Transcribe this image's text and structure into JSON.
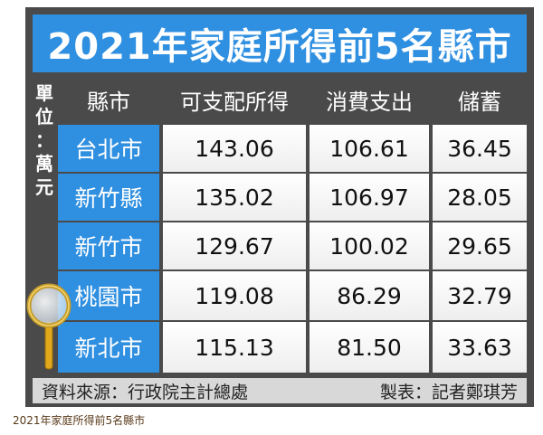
{
  "title": "2021年家庭所得前5名縣市",
  "unit_label": "單位：萬元",
  "unit_chars": [
    "單",
    "位",
    "：",
    "萬",
    "元"
  ],
  "headers": [
    "縣市",
    "可支配所得",
    "消費支出",
    "儲蓄"
  ],
  "rows": [
    {
      "city": "台北市",
      "income": "143.06",
      "spending": "106.61",
      "savings": "36.45"
    },
    {
      "city": "新竹縣",
      "income": "135.02",
      "spending": "106.97",
      "savings": "28.05"
    },
    {
      "city": "新竹市",
      "income": "129.67",
      "spending": "100.02",
      "savings": "29.65"
    },
    {
      "city": "桃園市",
      "income": "119.08",
      "spending": "86.29",
      "savings": "32.79"
    },
    {
      "city": "新北市",
      "income": "115.13",
      "spending": "81.50",
      "savings": "33.63"
    }
  ],
  "footer": {
    "source": "資料來源：行政院主計總處",
    "maker": "製表：記者鄭琪芳"
  },
  "caption": "2021年家庭所得前5名縣市",
  "colors": {
    "accent": "#2f8fe0",
    "dark": "#4a4a4a",
    "footer_bg": "#d8d8d8"
  },
  "icons": [
    "magnifier-icon"
  ]
}
